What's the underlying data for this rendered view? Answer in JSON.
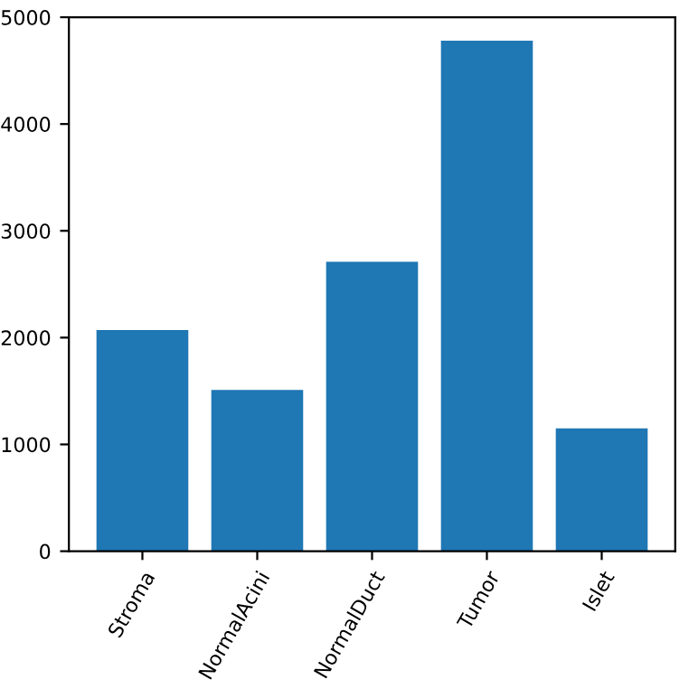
{
  "chart_data": {
    "type": "bar",
    "categories": [
      "Stroma",
      "NormalAcini",
      "NormalDuct",
      "Tumor",
      "Islet"
    ],
    "values": [
      2070,
      1510,
      2710,
      4780,
      1150
    ],
    "color": "#1f77b4",
    "ylim": [
      0,
      5000
    ],
    "yticks": [
      0,
      1000,
      2000,
      3000,
      4000,
      5000
    ],
    "grid": false
  }
}
